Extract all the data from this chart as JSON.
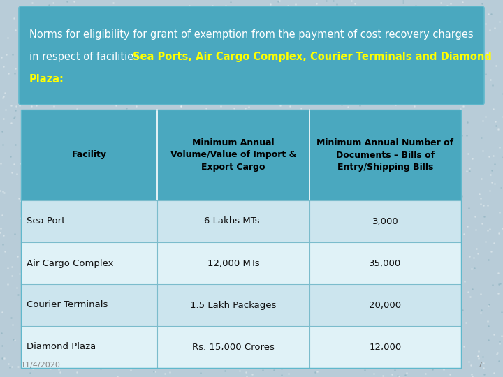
{
  "title_line1": "Norms for eligibility for grant of exemption from the payment of cost recovery charges",
  "title_line2_normal": "in respect of facilities ",
  "title_line2_highlight": "Sea Ports, Air Cargo Complex, Courier Terminals and Diamond",
  "title_line3_highlight": "Plaza:",
  "header": [
    "Facility",
    "Minimum Annual\nVolume/Value of Import &\nExport Cargo",
    "Minimum Annual Number of\nDocuments – Bills of\nEntry/Shipping Bills"
  ],
  "rows": [
    [
      "Sea Port",
      "6 Lakhs MTs.",
      "3,000"
    ],
    [
      "Air Cargo Complex",
      "12,000 MTs",
      "35,000"
    ],
    [
      "Courier Terminals",
      "1.5 Lakh Packages",
      "20,000"
    ],
    [
      "Diamond Plaza",
      "Rs. 15,000 Crores",
      "12,000"
    ]
  ],
  "header_bg": "#4aa8bf",
  "row_bg_even": "#cce5ee",
  "row_bg_odd": "#e0f2f7",
  "title_bg": "#4aa8bf",
  "slide_bg": "#b8ccd8",
  "title_text_color": "#ffffff",
  "title_highlight_color": "#ffff00",
  "header_text_color": "#000000",
  "row_text_color": "#111111",
  "footer_text": "11/4/2020",
  "footer_page": "7",
  "title_fontsize": 10.5,
  "header_fontsize": 9.0,
  "row_fontsize": 9.5
}
